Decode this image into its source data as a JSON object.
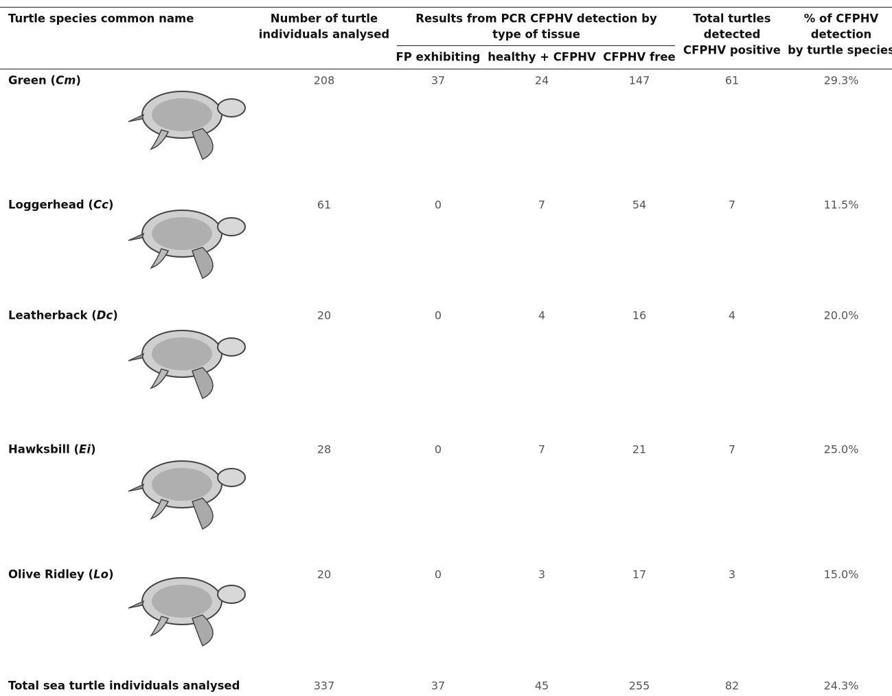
{
  "table": {
    "header": {
      "species": "Turtle species common name",
      "number": [
        "Number of turtle",
        "individuals analysed"
      ],
      "results": [
        "Results from PCR CFPHV detection by",
        "type of tissue"
      ],
      "sub": [
        "FP exhibiting",
        "healthy + CFPHV",
        "CFPHV free"
      ],
      "total": [
        "Total turtles",
        "detected",
        "CFPHV positive"
      ],
      "percent": [
        "% of CFPHV",
        "detection",
        "by turtle species"
      ]
    },
    "rows": [
      {
        "name_parts": [
          "Green (",
          "Cm",
          ")"
        ],
        "cells": [
          "208",
          "37",
          "24",
          "147",
          "61",
          "29.3%"
        ]
      },
      {
        "name_parts": [
          "Loggerhead (",
          "Cc",
          ")"
        ],
        "cells": [
          "61",
          "0",
          "7",
          "54",
          "7",
          "11.5%"
        ]
      },
      {
        "name_parts": [
          "Leatherback (",
          "Dc",
          ")"
        ],
        "cells": [
          "20",
          "0",
          "4",
          "16",
          "4",
          "20.0%"
        ]
      },
      {
        "name_parts": [
          "Hawksbill (",
          "Ei",
          ")"
        ],
        "cells": [
          "28",
          "0",
          "7",
          "21",
          "7",
          "25.0%"
        ]
      },
      {
        "name_parts": [
          "Olive Ridley (",
          "Lo",
          ")"
        ],
        "cells": [
          "20",
          "0",
          "3",
          "17",
          "3",
          "15.0%"
        ]
      }
    ],
    "total": {
      "name": "Total sea turtle individuals analysed",
      "cells": [
        "337",
        "37",
        "45",
        "255",
        "82",
        "24.3%"
      ]
    }
  }
}
